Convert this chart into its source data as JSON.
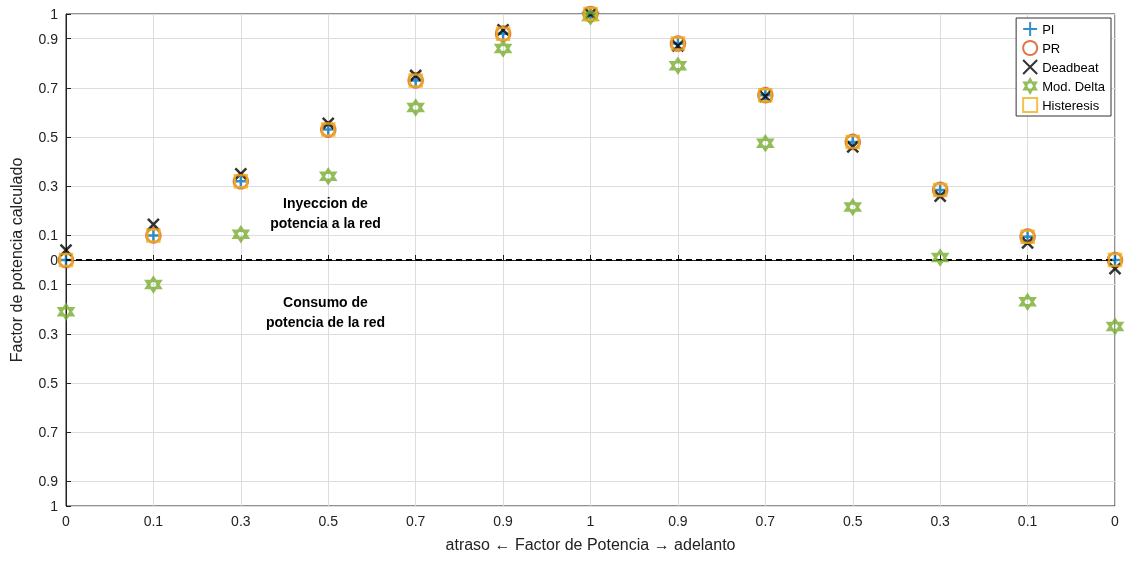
{
  "chart_data": {
    "type": "scatter",
    "xlabel": "atraso ← Factor de Potencia → adelanto",
    "ylabel": "Factor de potencia calculado",
    "categories": [
      "0",
      "0.1",
      "0.3",
      "0.5",
      "0.7",
      "0.9",
      "1",
      "0.9",
      "0.7",
      "0.5",
      "0.3",
      "0.1",
      "0"
    ],
    "ylim": [
      -1,
      1
    ],
    "yticks": [
      {
        "value": -1,
        "label": "1"
      },
      {
        "value": -0.9,
        "label": "0.9"
      },
      {
        "value": -0.7,
        "label": "0.7"
      },
      {
        "value": -0.5,
        "label": "0.5"
      },
      {
        "value": -0.3,
        "label": "0.3"
      },
      {
        "value": -0.1,
        "label": "0.1"
      },
      0,
      0.1,
      0.3,
      0.5,
      0.7,
      0.9,
      1
    ],
    "grid": true,
    "legend": "top right",
    "series": [
      {
        "name": "PI",
        "color": "#0072bd",
        "marker": "cross",
        "values": [
          0,
          0.1,
          0.32,
          0.53,
          0.73,
          0.92,
          1,
          0.88,
          0.67,
          0.48,
          0.285,
          0.095,
          0
        ]
      },
      {
        "name": "PR",
        "color": "#d95319",
        "marker": "circle",
        "values": [
          0,
          0.1,
          0.32,
          0.53,
          0.73,
          0.92,
          1,
          0.88,
          0.67,
          0.48,
          0.285,
          0.095,
          0
        ]
      },
      {
        "name": "Deadbeat",
        "color": "#000000",
        "marker": "x",
        "values": [
          0.04,
          0.145,
          0.35,
          0.555,
          0.75,
          0.935,
          1,
          0.87,
          0.665,
          0.46,
          0.26,
          0.07,
          -0.035
        ]
      },
      {
        "name": "Mod. Delta",
        "color": "#77ac30",
        "marker": "star",
        "values": [
          -0.21,
          -0.1,
          0.105,
          0.34,
          0.62,
          0.86,
          0.99,
          0.79,
          0.475,
          0.215,
          0.01,
          -0.17,
          -0.27
        ]
      },
      {
        "name": "Histeresis",
        "color": "#edb120",
        "marker": "square",
        "values": [
          0,
          0.1,
          0.32,
          0.53,
          0.73,
          0.92,
          1,
          0.88,
          0.67,
          0.48,
          0.285,
          0.095,
          0
        ]
      }
    ],
    "ref_lines": [
      {
        "axis": "y",
        "value": 0,
        "color": "#000000",
        "line_style": "dashed"
      }
    ],
    "annotations": [
      "Inyeccion de\npotencia a la red",
      "Consumo de\npotencia de la red"
    ]
  }
}
